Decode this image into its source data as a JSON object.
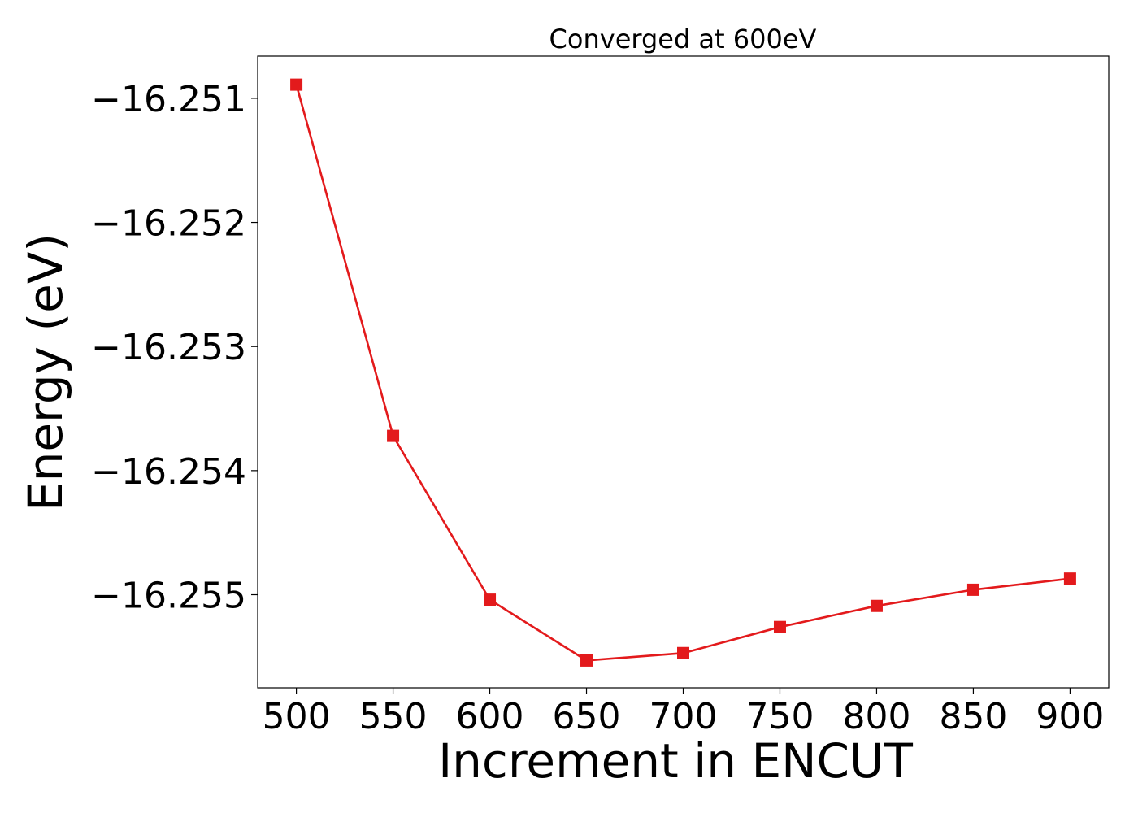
{
  "chart_data": {
    "type": "line",
    "title": "Converged at 600eV",
    "xlabel": "Increment in ENCUT",
    "ylabel": "Energy (eV)",
    "x": [
      500,
      550,
      600,
      650,
      700,
      750,
      800,
      850,
      900
    ],
    "series": [
      {
        "name": "",
        "color": "#e31a1c",
        "marker": "square",
        "values": [
          -16.25089,
          -16.25372,
          -16.25504,
          -16.25553,
          -16.25547,
          -16.25526,
          -16.25509,
          -16.25496,
          -16.25487
        ]
      }
    ],
    "xlim": [
      480,
      920
    ],
    "ylim": [
      -16.25575,
      -16.25066
    ],
    "xticks": [
      500,
      550,
      600,
      650,
      700,
      750,
      800,
      850,
      900
    ],
    "xtick_labels": [
      "500",
      "550",
      "600",
      "650",
      "700",
      "750",
      "800",
      "850",
      "900"
    ],
    "yticks": [
      -16.251,
      -16.252,
      -16.253,
      -16.254,
      -16.255
    ],
    "ytick_labels": [
      "−16.251",
      "−16.252",
      "−16.253",
      "−16.254",
      "−16.255"
    ],
    "grid": false,
    "legend": "none"
  }
}
